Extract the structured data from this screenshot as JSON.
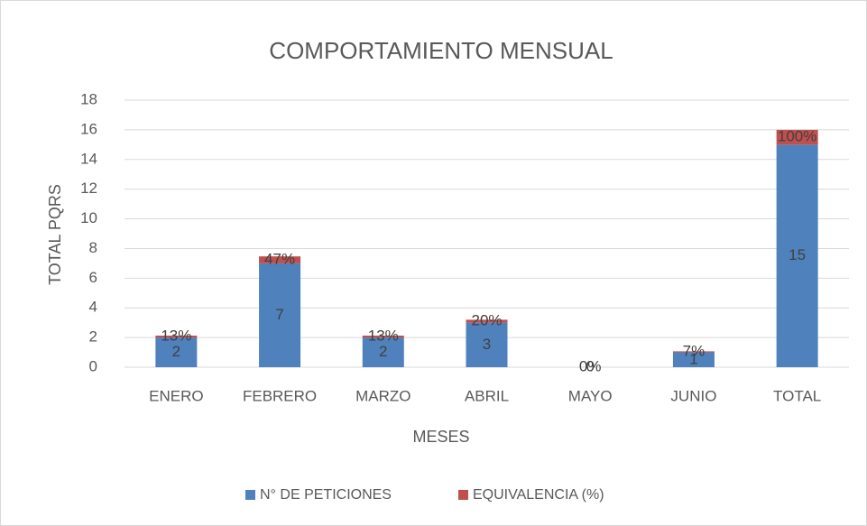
{
  "chart_data": {
    "type": "stacked_bar",
    "title": "COMPORTAMIENTO MENSUAL",
    "x_label": "MESES",
    "y_label": "TOTAL PQRS",
    "categories": [
      "ENERO",
      "FEBRERO",
      "MARZO",
      "ABRIL",
      "MAYO",
      "JUNIO",
      "TOTAL"
    ],
    "series": [
      {
        "name": "N° DE PETICIONES",
        "color": "#4f81bd",
        "values": [
          2,
          7,
          2,
          3,
          0,
          1,
          15
        ]
      },
      {
        "name": "EQUIVALENCIA (%)",
        "color": "#c0504d",
        "values": [
          0.13,
          0.47,
          0.13,
          0.2,
          0,
          0.07,
          1
        ],
        "value_labels": [
          "13%",
          "47%",
          "13%",
          "20%",
          "0%",
          "7%",
          "100%"
        ]
      }
    ],
    "ylim": [
      0,
      18
    ],
    "yticks": [
      0,
      2,
      4,
      6,
      8,
      10,
      12,
      14,
      16,
      18
    ],
    "grid": true,
    "legend": "bottom"
  }
}
